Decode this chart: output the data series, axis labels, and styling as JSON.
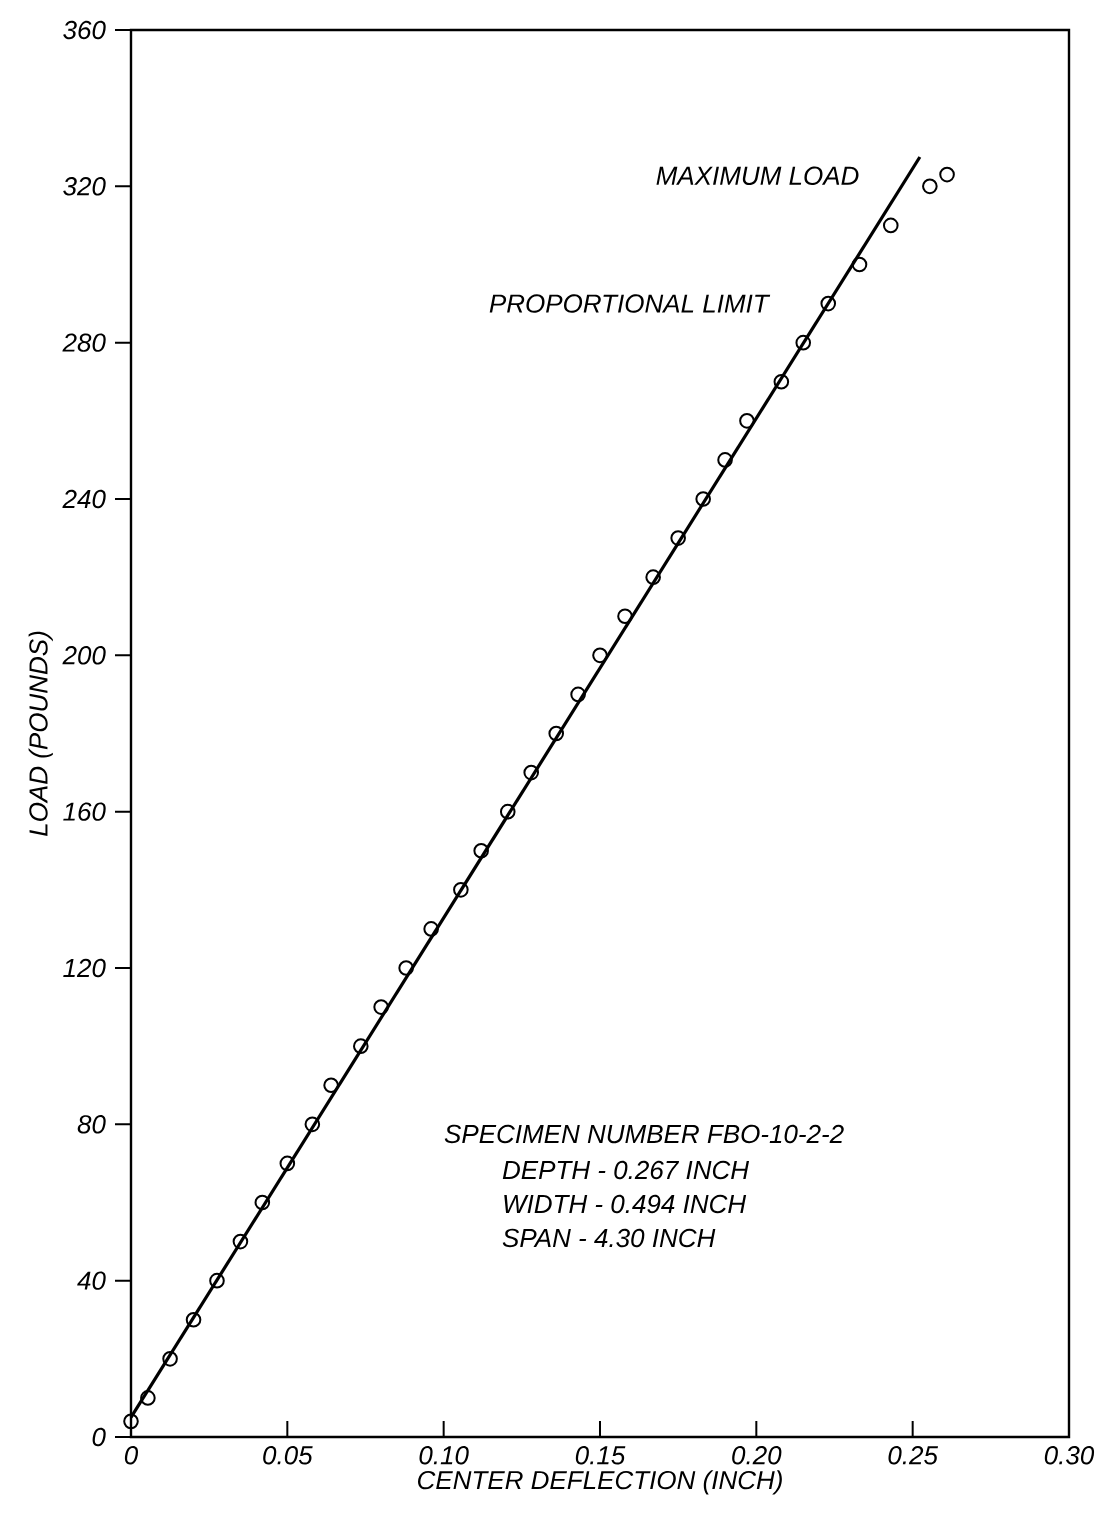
{
  "chart_data": {
    "type": "scatter",
    "xlabel": "CENTER   DEFLECTION  (INCH)",
    "ylabel": "LOAD  (POUNDS)",
    "xlim": [
      0,
      0.3
    ],
    "ylim": [
      0,
      360
    ],
    "xticks": [
      0,
      {
        "value": 0.05,
        "label": "0.05"
      },
      {
        "value": 0.1,
        "label": "0.10"
      },
      {
        "value": 0.15,
        "label": "0.15"
      },
      {
        "value": 0.2,
        "label": "0.20"
      },
      {
        "value": 0.25,
        "label": "0.25"
      },
      {
        "value": 0.3,
        "label": "0.30"
      }
    ],
    "yticks": [
      0,
      40,
      80,
      120,
      160,
      200,
      240,
      280,
      320,
      360
    ],
    "grid": false,
    "marker": "circle",
    "series": [
      {
        "color": "#000000",
        "x": [
          0,
          0.0054,
          0.0125,
          0.02,
          0.0275,
          0.035,
          0.042,
          0.05,
          0.058,
          0.064,
          0.0735,
          0.08,
          0.088,
          0.096,
          0.1055,
          0.112,
          0.1205,
          0.128,
          0.136,
          0.143,
          0.15,
          0.158,
          0.167,
          0.175,
          0.183,
          0.19,
          0.197,
          0.208,
          0.215,
          0.223,
          0.233,
          0.243,
          0.2555,
          0.261
        ],
        "values": [
          4,
          10,
          20,
          30,
          40,
          50,
          60,
          70,
          80,
          90,
          100,
          110,
          120,
          130,
          140,
          150,
          160,
          170,
          180,
          190,
          200,
          210,
          220,
          230,
          240,
          250,
          260,
          270,
          280,
          290,
          300,
          310,
          320,
          323
        ]
      },
      {
        "type": "line",
        "color": "#000000",
        "marker": "none",
        "line_style": "solid",
        "x": [
          0,
          0.2523
        ],
        "values": [
          5,
          327.5
        ]
      }
    ],
    "annotations": [
      "MAXIMUM   LOAD",
      "PROPORTIONAL   LIMIT",
      "SPECIMEN   NUMBER   FBO-10-2-2",
      "DEPTH   -  0.267  INCH",
      "WIDTH   -  0.494  INCH",
      "SPAN    -  4.30  INCH"
    ]
  }
}
